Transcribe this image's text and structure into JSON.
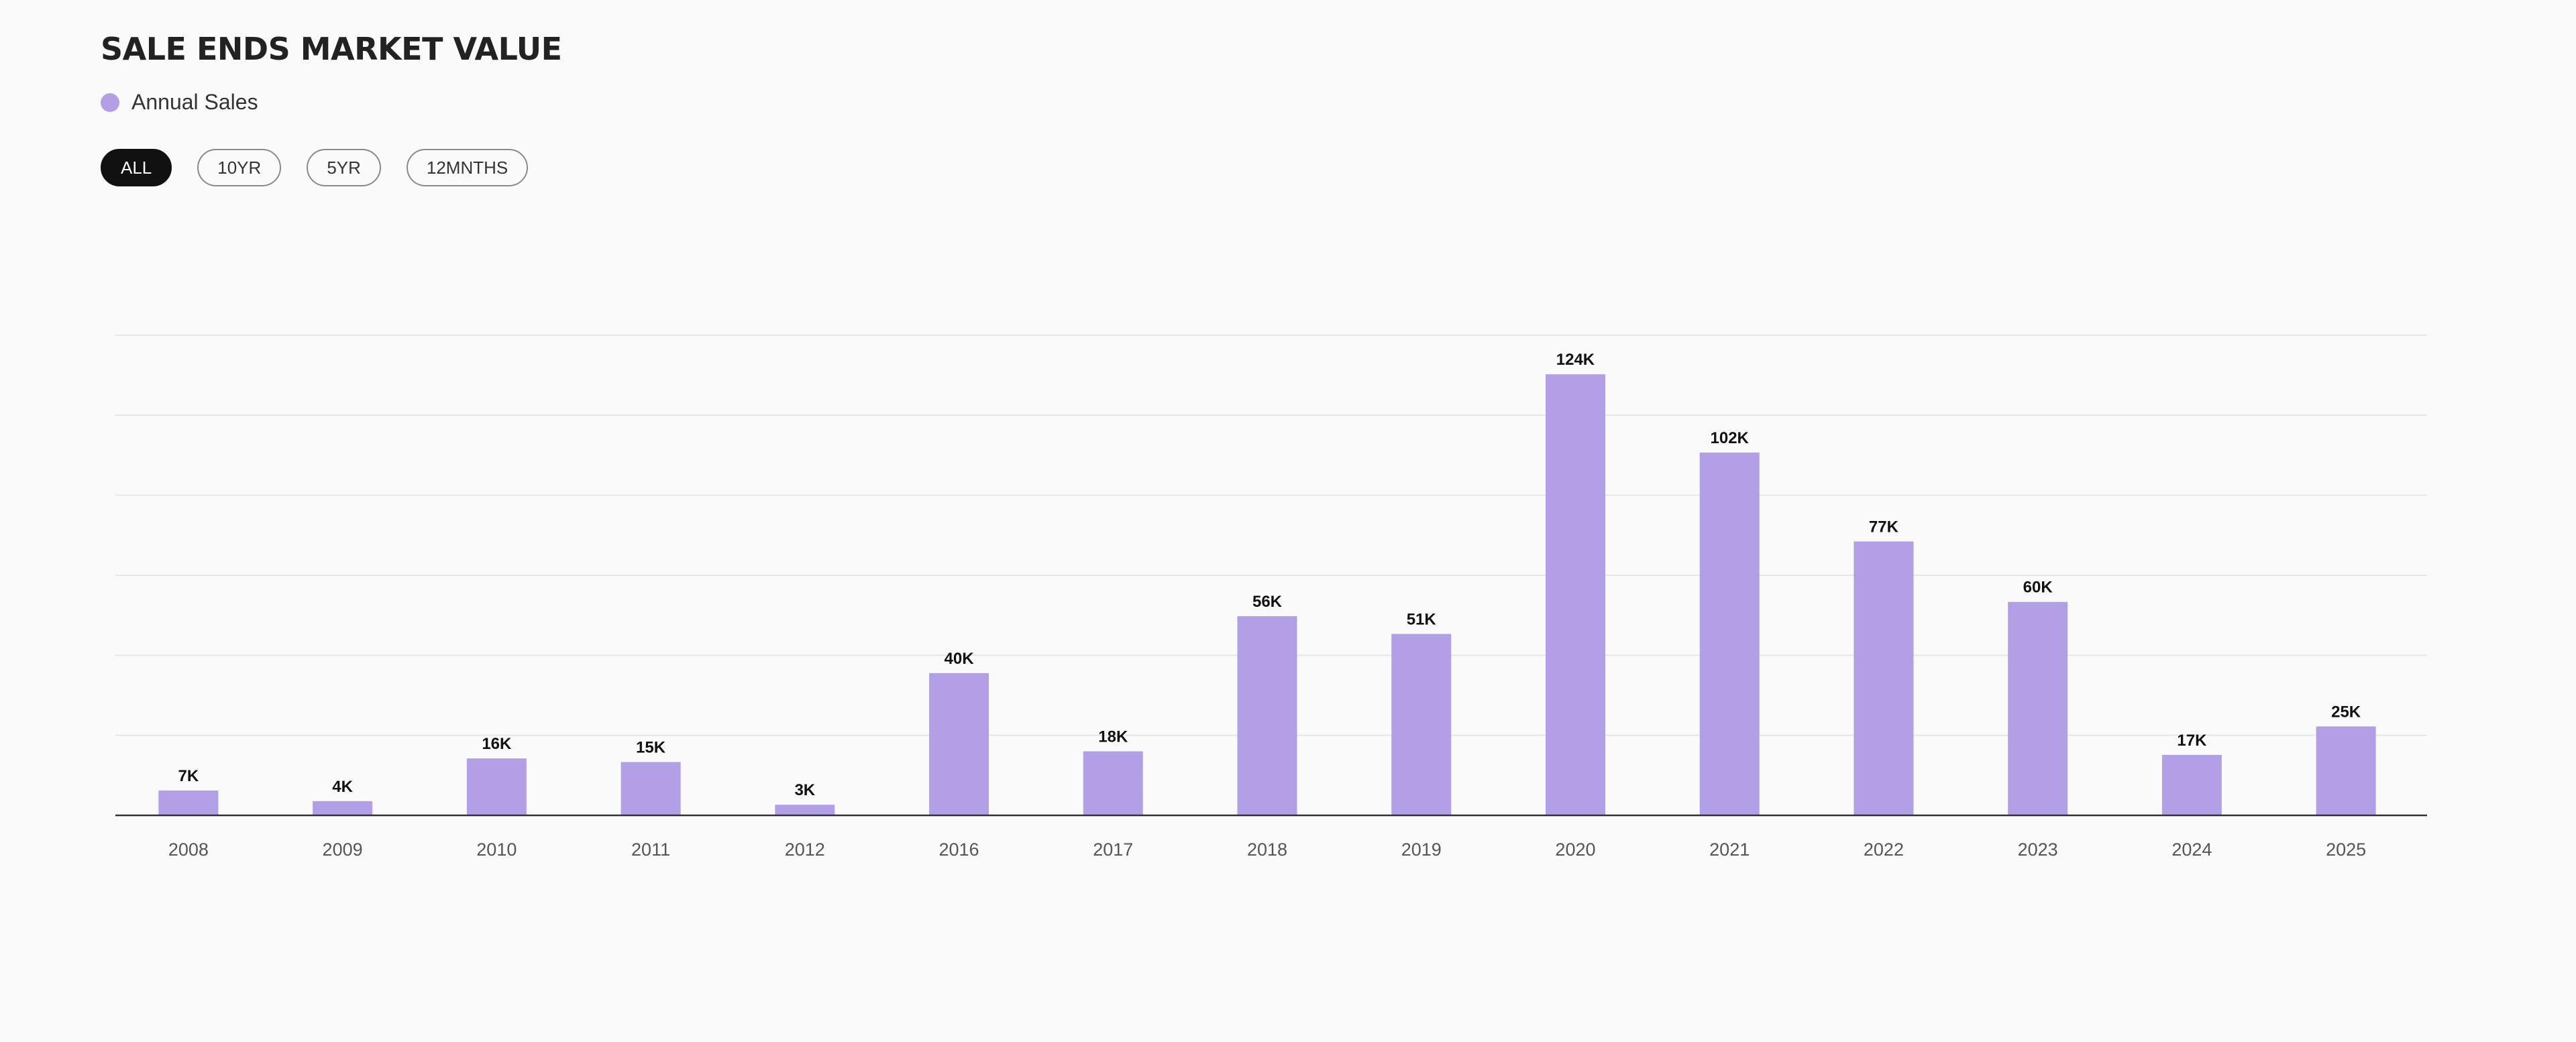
{
  "title": "SALE ENDS MARKET VALUE",
  "legend": {
    "label": "Annual Sales",
    "color": "#b39fe6"
  },
  "filters": [
    {
      "label": "ALL",
      "active": true
    },
    {
      "label": "10YR",
      "active": false
    },
    {
      "label": "5YR",
      "active": false
    },
    {
      "label": "12MNTHS",
      "active": false
    }
  ],
  "chart_data": {
    "type": "bar",
    "title": "SALE ENDS MARKET VALUE",
    "xlabel": "",
    "ylabel": "",
    "categories": [
      "2008",
      "2009",
      "2010",
      "2011",
      "2012",
      "2016",
      "2017",
      "2018",
      "2019",
      "2020",
      "2021",
      "2022",
      "2023",
      "2024",
      "2025"
    ],
    "series": [
      {
        "name": "Annual Sales",
        "color": "#b39fe6",
        "values": [
          7000,
          4000,
          16000,
          15000,
          3000,
          40000,
          18000,
          56000,
          51000,
          124000,
          102000,
          77000,
          60000,
          17000,
          25000
        ],
        "labels": [
          "7K",
          "4K",
          "16K",
          "15K",
          "3K",
          "40K",
          "18K",
          "56K",
          "51K",
          "124K",
          "102K",
          "77K",
          "60K",
          "17K",
          "25K"
        ]
      }
    ],
    "ylim": [
      0,
      150000
    ],
    "grid": true,
    "legend_position": "top-left"
  }
}
